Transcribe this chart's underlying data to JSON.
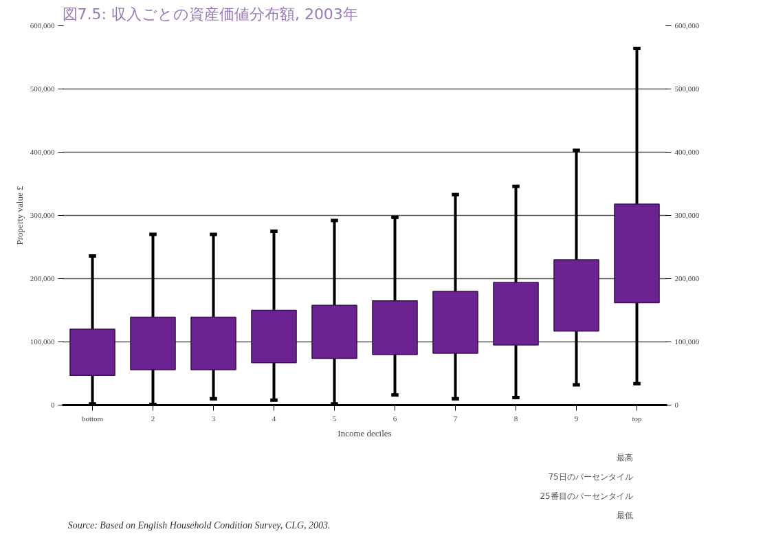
{
  "chart_data": {
    "type": "box",
    "title": "図7.5: 収入ごとの資産価値分布額, 2003年",
    "xlabel": "Income deciles",
    "ylabel": "Property value £",
    "categories": [
      "bottom",
      "2",
      "3",
      "4",
      "5",
      "6",
      "7",
      "8",
      "9",
      "top"
    ],
    "series": [
      {
        "color": "#6b2391",
        "boxes": [
          {
            "low": 2000,
            "q1": 47000,
            "q3": 120000,
            "high": 236000
          },
          {
            "low": 1000,
            "q1": 56000,
            "q3": 139000,
            "high": 270000
          },
          {
            "low": 10000,
            "q1": 56000,
            "q3": 139000,
            "high": 270000
          },
          {
            "low": 8000,
            "q1": 67000,
            "q3": 150000,
            "high": 275000
          },
          {
            "low": 2000,
            "q1": 74000,
            "q3": 158000,
            "high": 292000
          },
          {
            "low": 16000,
            "q1": 80000,
            "q3": 165000,
            "high": 297000
          },
          {
            "low": 10000,
            "q1": 82000,
            "q3": 180000,
            "high": 333000
          },
          {
            "low": 12000,
            "q1": 95000,
            "q3": 194000,
            "high": 346000
          },
          {
            "low": 32000,
            "q1": 117000,
            "q3": 230000,
            "high": 403000
          },
          {
            "low": 34000,
            "q1": 162000,
            "q3": 318000,
            "high": 564000
          }
        ]
      }
    ],
    "ylim": [
      0,
      600000
    ],
    "yticks": [
      0,
      {
        "value": 100000,
        "label": "100,000"
      },
      {
        "value": 200000,
        "label": "200,000"
      },
      {
        "value": 300000,
        "label": "300,000"
      },
      {
        "value": 400000,
        "label": "400,000"
      },
      {
        "value": 500000,
        "label": "500,000"
      },
      {
        "value": 600000,
        "label": "600,000"
      }
    ],
    "y2lim": [
      0,
      600000
    ],
    "y2ticks": [
      0,
      {
        "value": 100000,
        "label": "100,000"
      },
      {
        "value": 200000,
        "label": "200,000"
      },
      {
        "value": 300000,
        "label": "300,000"
      },
      {
        "value": 400000,
        "label": "400,000"
      },
      {
        "value": 500000,
        "label": "500,000"
      },
      {
        "value": 600000,
        "label": "600,000"
      }
    ],
    "grid": "y",
    "annotations": [
      "Source: Based on English Household Condition Survey, CLG, 2003.",
      "最高",
      "75日のパーセンタイル",
      "25番目のパーセンタイル",
      "最低"
    ]
  }
}
